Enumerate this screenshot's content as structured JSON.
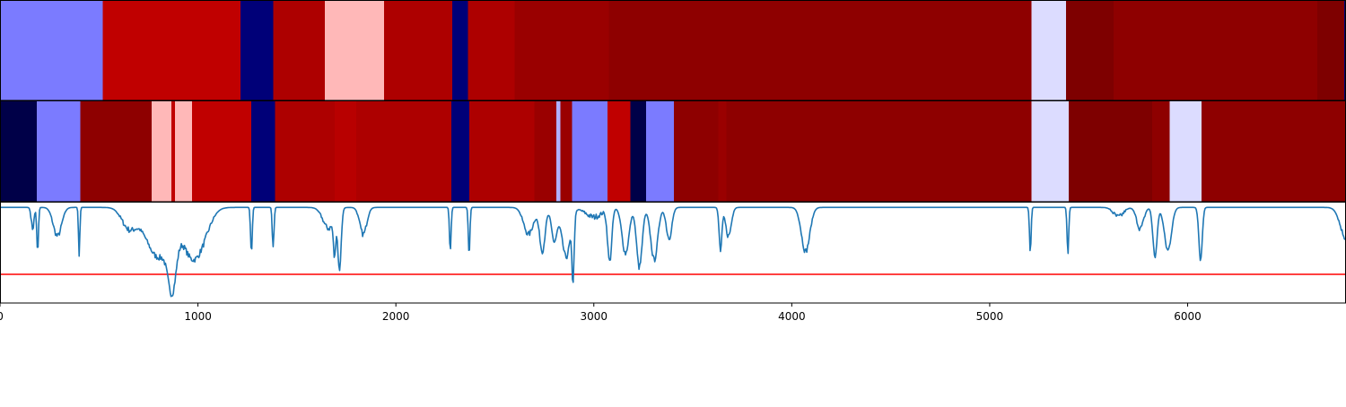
{
  "chart_data": {
    "type": "heatmap",
    "title": "",
    "xlabel": "",
    "ylabel": "",
    "xlim": [
      0,
      6800
    ],
    "colormap": "seismic",
    "xticks": [
      0,
      1000,
      2000,
      3000,
      4000,
      5000,
      6000
    ],
    "xtick_labels": [
      "0",
      "1000",
      "2000",
      "3000",
      "4000",
      "5000",
      "6000"
    ],
    "tracks": [
      {
        "segments": [
          {
            "start": 0,
            "end": 520,
            "color": "#7b7bff"
          },
          {
            "start": 520,
            "end": 1215,
            "color": "#c00000"
          },
          {
            "start": 1215,
            "end": 1380,
            "color": "#000078"
          },
          {
            "start": 1380,
            "end": 1640,
            "color": "#ad0000"
          },
          {
            "start": 1640,
            "end": 1940,
            "color": "#ffb8b8"
          },
          {
            "start": 1940,
            "end": 2285,
            "color": "#ad0000"
          },
          {
            "start": 2285,
            "end": 2365,
            "color": "#000078"
          },
          {
            "start": 2365,
            "end": 2600,
            "color": "#ad0000"
          },
          {
            "start": 2600,
            "end": 3075,
            "color": "#9a0000"
          },
          {
            "start": 3075,
            "end": 5210,
            "color": "#8e0000"
          },
          {
            "start": 5210,
            "end": 5385,
            "color": "#dcdcff"
          },
          {
            "start": 5385,
            "end": 5625,
            "color": "#7e0000"
          },
          {
            "start": 5625,
            "end": 6655,
            "color": "#8e0000"
          },
          {
            "start": 6655,
            "end": 6790,
            "color": "#7e0000"
          },
          {
            "start": 6790,
            "end": 6800,
            "color": "#000078"
          }
        ]
      },
      {
        "segments": [
          {
            "start": 0,
            "end": 185,
            "color": "#000048"
          },
          {
            "start": 185,
            "end": 405,
            "color": "#7b7bff"
          },
          {
            "start": 405,
            "end": 765,
            "color": "#8e0000"
          },
          {
            "start": 765,
            "end": 865,
            "color": "#ffb8b8"
          },
          {
            "start": 865,
            "end": 885,
            "color": "#c00000"
          },
          {
            "start": 885,
            "end": 970,
            "color": "#ffb8b8"
          },
          {
            "start": 970,
            "end": 1270,
            "color": "#c00000"
          },
          {
            "start": 1270,
            "end": 1390,
            "color": "#000078"
          },
          {
            "start": 1390,
            "end": 1690,
            "color": "#ad0000"
          },
          {
            "start": 1690,
            "end": 1800,
            "color": "#b80000"
          },
          {
            "start": 1800,
            "end": 2280,
            "color": "#ad0000"
          },
          {
            "start": 2280,
            "end": 2370,
            "color": "#000078"
          },
          {
            "start": 2370,
            "end": 2700,
            "color": "#ad0000"
          },
          {
            "start": 2700,
            "end": 2810,
            "color": "#9a0000"
          },
          {
            "start": 2810,
            "end": 2830,
            "color": "#b0b0ff"
          },
          {
            "start": 2830,
            "end": 2890,
            "color": "#9a0000"
          },
          {
            "start": 2890,
            "end": 3070,
            "color": "#7b7bff"
          },
          {
            "start": 3070,
            "end": 3185,
            "color": "#c00000"
          },
          {
            "start": 3185,
            "end": 3265,
            "color": "#000048"
          },
          {
            "start": 3265,
            "end": 3405,
            "color": "#7b7bff"
          },
          {
            "start": 3405,
            "end": 3630,
            "color": "#8e0000"
          },
          {
            "start": 3630,
            "end": 3670,
            "color": "#9a0000"
          },
          {
            "start": 3670,
            "end": 5210,
            "color": "#8e0000"
          },
          {
            "start": 5210,
            "end": 5400,
            "color": "#dcdcff"
          },
          {
            "start": 5400,
            "end": 5820,
            "color": "#7e0000"
          },
          {
            "start": 5820,
            "end": 5910,
            "color": "#8e0000"
          },
          {
            "start": 5910,
            "end": 6070,
            "color": "#dcdcff"
          },
          {
            "start": 6070,
            "end": 6800,
            "color": "#8e0000"
          }
        ]
      }
    ],
    "line_plot": {
      "color": "#1f77b4",
      "ylim": [
        -1.0,
        0.05
      ],
      "threshold": -0.7,
      "threshold_color": "#ff0000",
      "baseline": 0,
      "dips": [
        {
          "x": 165,
          "width": 10,
          "depth": 0.22
        },
        {
          "x": 190,
          "width": 6,
          "depth": 0.48
        },
        {
          "x": 290,
          "width": 30,
          "depth": 0.3
        },
        {
          "x": 400,
          "width": 5,
          "depth": 0.5
        },
        {
          "x": 650,
          "width": 50,
          "depth": 0.2
        },
        {
          "x": 800,
          "width": 90,
          "depth": 0.52
        },
        {
          "x": 870,
          "width": 30,
          "depth": 0.58
        },
        {
          "x": 960,
          "width": 60,
          "depth": 0.4
        },
        {
          "x": 1020,
          "width": 60,
          "depth": 0.28
        },
        {
          "x": 1270,
          "width": 6,
          "depth": 0.48
        },
        {
          "x": 1380,
          "width": 6,
          "depth": 0.44
        },
        {
          "x": 1660,
          "width": 40,
          "depth": 0.22
        },
        {
          "x": 1690,
          "width": 8,
          "depth": 0.4
        },
        {
          "x": 1715,
          "width": 12,
          "depth": 0.62
        },
        {
          "x": 1835,
          "width": 25,
          "depth": 0.28
        },
        {
          "x": 2275,
          "width": 6,
          "depth": 0.45
        },
        {
          "x": 2370,
          "width": 6,
          "depth": 0.48
        },
        {
          "x": 2670,
          "width": 35,
          "depth": 0.28
        },
        {
          "x": 2740,
          "width": 20,
          "depth": 0.45
        },
        {
          "x": 2800,
          "width": 20,
          "depth": 0.35
        },
        {
          "x": 2860,
          "width": 30,
          "depth": 0.52
        },
        {
          "x": 2895,
          "width": 8,
          "depth": 0.65
        },
        {
          "x": 3000,
          "width": 60,
          "depth": 0.1
        },
        {
          "x": 3080,
          "width": 15,
          "depth": 0.55
        },
        {
          "x": 3160,
          "width": 25,
          "depth": 0.48
        },
        {
          "x": 3230,
          "width": 20,
          "depth": 0.63
        },
        {
          "x": 3305,
          "width": 25,
          "depth": 0.55
        },
        {
          "x": 3380,
          "width": 20,
          "depth": 0.32
        },
        {
          "x": 3640,
          "width": 10,
          "depth": 0.45
        },
        {
          "x": 3680,
          "width": 20,
          "depth": 0.3
        },
        {
          "x": 4070,
          "width": 30,
          "depth": 0.46
        },
        {
          "x": 5205,
          "width": 6,
          "depth": 0.46
        },
        {
          "x": 5395,
          "width": 6,
          "depth": 0.48
        },
        {
          "x": 5650,
          "width": 35,
          "depth": 0.1
        },
        {
          "x": 5760,
          "width": 25,
          "depth": 0.22
        },
        {
          "x": 5835,
          "width": 15,
          "depth": 0.52
        },
        {
          "x": 5900,
          "width": 25,
          "depth": 0.45
        },
        {
          "x": 6065,
          "width": 12,
          "depth": 0.55
        },
        {
          "x": 6800,
          "width": 40,
          "depth": 0.32
        }
      ]
    }
  }
}
